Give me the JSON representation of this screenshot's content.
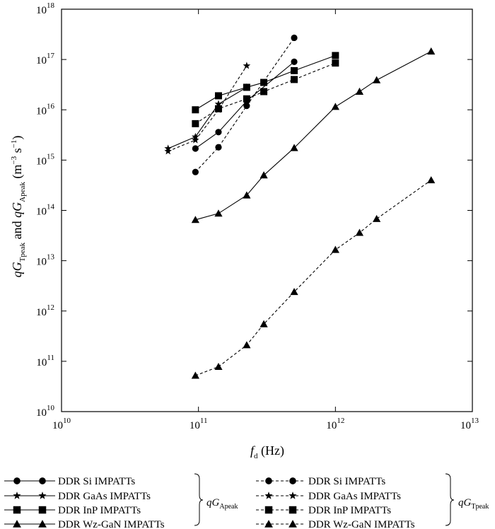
{
  "chart_data": {
    "type": "line",
    "x_scale": "log",
    "y_scale": "log",
    "xlim": [
      10000000000.0,
      10000000000000.0
    ],
    "ylim": [
      10000000000.0,
      1e+18
    ],
    "grid": false,
    "legend_position": "bottom",
    "x_ticks": [
      {
        "value": 10000000000.0,
        "base": "10",
        "exp": "10"
      },
      {
        "value": 100000000000.0,
        "base": "10",
        "exp": "11"
      },
      {
        "value": 1000000000000.0,
        "base": "10",
        "exp": "12"
      },
      {
        "value": 10000000000000.0,
        "base": "10",
        "exp": "13"
      }
    ],
    "y_ticks": [
      {
        "value": 10000000000.0,
        "base": "10",
        "exp": "10"
      },
      {
        "value": 100000000000.0,
        "base": "10",
        "exp": "11"
      },
      {
        "value": 1000000000000.0,
        "base": "10",
        "exp": "12"
      },
      {
        "value": 10000000000000.0,
        "base": "10",
        "exp": "13"
      },
      {
        "value": 100000000000000.0,
        "base": "10",
        "exp": "14"
      },
      {
        "value": 1000000000000000.0,
        "base": "10",
        "exp": "15"
      },
      {
        "value": 1e+16,
        "base": "10",
        "exp": "16"
      },
      {
        "value": 1e+17,
        "base": "10",
        "exp": "17"
      },
      {
        "value": 1e+18,
        "base": "10",
        "exp": "18"
      }
    ],
    "xlabel": {
      "main": "f",
      "sub": "d",
      "rest": " (Hz)"
    },
    "ylabel": {
      "q1": "q",
      "g1": "G",
      "sub1": "Tpeak",
      "mid": " and ",
      "q2": "q",
      "g2": "G",
      "sub2": "Apeak",
      "unit_open": " (m",
      "unit_exp1": "−3",
      "unit_mid": " s",
      "unit_exp2": "−1",
      "unit_close": ")"
    },
    "legend_groups": [
      {
        "q": "q",
        "g": "G",
        "sub": "Apeak"
      },
      {
        "q": "q",
        "g": "G",
        "sub": "Tpeak"
      }
    ],
    "series": [
      {
        "name": "DDR Si IMPATTs",
        "group": 0,
        "marker": "circle",
        "dash": false,
        "x": [
          95000000000.0,
          140000000000.0,
          225000000000.0,
          500000000000.0
        ],
        "y": [
          1700000000000000.0,
          3600000000000000.0,
          1.5e+16,
          9e+16
        ]
      },
      {
        "name": "DDR GaAs IMPATTs",
        "group": 0,
        "marker": "star",
        "dash": false,
        "x": [
          60000000000.0,
          95000000000.0,
          140000000000.0,
          225000000000.0
        ],
        "y": [
          1700000000000000.0,
          2900000000000000.0,
          1.3e+16,
          2.8e+16
        ]
      },
      {
        "name": "DDR InP IMPATTs",
        "group": 0,
        "marker": "square",
        "dash": false,
        "x": [
          95000000000.0,
          140000000000.0,
          225000000000.0,
          300000000000.0,
          500000000000.0,
          1000000000000.0
        ],
        "y": [
          1e+16,
          1.9e+16,
          2.8e+16,
          3.5e+16,
          6e+16,
          1.2e+17
        ]
      },
      {
        "name": "DDR Wz-GaN IMPATTs",
        "group": 0,
        "marker": "triangle",
        "dash": false,
        "x": [
          95000000000.0,
          140000000000.0,
          225000000000.0,
          300000000000.0,
          500000000000.0,
          1000000000000.0,
          1500000000000.0,
          2000000000000.0,
          5000000000000.0
        ],
        "y": [
          65000000000000.0,
          87000000000000.0,
          200000000000000.0,
          500000000000000.0,
          1750000000000000.0,
          1.15e+16,
          2.3e+16,
          3.9e+16,
          1.45e+17
        ]
      },
      {
        "name": "DDR Si IMPATTs",
        "group": 1,
        "marker": "circle",
        "dash": true,
        "x": [
          95000000000.0,
          140000000000.0,
          225000000000.0,
          500000000000.0
        ],
        "y": [
          580000000000000.0,
          1800000000000000.0,
          1.2e+16,
          2.7e+17
        ]
      },
      {
        "name": "DDR GaAs IMPATTs",
        "group": 1,
        "marker": "star",
        "dash": true,
        "x": [
          60000000000.0,
          95000000000.0,
          140000000000.0,
          225000000000.0
        ],
        "y": [
          1500000000000000.0,
          2500000000000000.0,
          1e+16,
          7.5e+16
        ]
      },
      {
        "name": "DDR InP IMPATTs",
        "group": 1,
        "marker": "square",
        "dash": true,
        "x": [
          95000000000.0,
          140000000000.0,
          225000000000.0,
          300000000000.0,
          500000000000.0,
          1000000000000.0
        ],
        "y": [
          5300000000000000.0,
          1.05e+16,
          1.65e+16,
          2.3e+16,
          4e+16,
          8.5e+16
        ]
      },
      {
        "name": "DDR Wz-GaN IMPATTs",
        "group": 1,
        "marker": "triangle",
        "dash": true,
        "x": [
          95000000000.0,
          140000000000.0,
          225000000000.0,
          300000000000.0,
          500000000000.0,
          1000000000000.0,
          1500000000000.0,
          2000000000000.0,
          5000000000000.0
        ],
        "y": [
          52000000000.0,
          78000000000.0,
          210000000000.0,
          550000000000.0,
          2400000000000.0,
          16500000000000.0,
          36000000000000.0,
          68000000000000.0,
          400000000000000.0
        ]
      }
    ]
  }
}
